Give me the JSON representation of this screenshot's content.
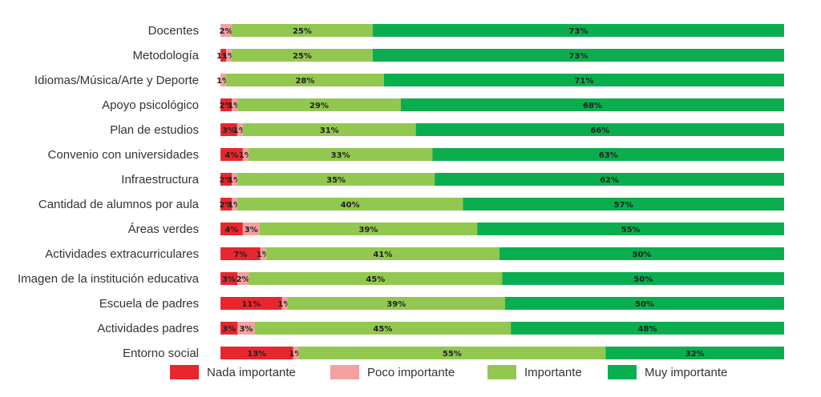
{
  "chart_data": {
    "type": "bar",
    "orientation": "horizontal",
    "stacked": true,
    "title": "",
    "xlabel": "",
    "ylabel": "",
    "categories": [
      "Docentes",
      "Metodología",
      "Idiomas/Música/Arte y Deporte",
      "Apoyo psicológico",
      "Plan de estudios",
      "Convenio con universidades",
      "Infraestructura",
      "Cantidad de alumnos por aula",
      "Áreas verdes",
      "Actividades extracurriculares",
      "Imagen de la institución educativa",
      "Escuela de padres",
      "Actividades padres",
      "Entorno social"
    ],
    "series": [
      {
        "name": "Nada importante",
        "color": "#e8262d",
        "values": [
          0,
          1,
          0,
          2,
          3,
          4,
          2,
          2,
          4,
          7,
          3,
          11,
          3,
          13
        ]
      },
      {
        "name": "Poco importante",
        "color": "#f4a0a0",
        "values": [
          2,
          1,
          1,
          1,
          1,
          1,
          1,
          1,
          3,
          1,
          2,
          1,
          3,
          1
        ]
      },
      {
        "name": "Importante",
        "color": "#92c84f",
        "values": [
          25,
          25,
          28,
          29,
          31,
          33,
          35,
          40,
          39,
          41,
          45,
          39,
          45,
          55
        ]
      },
      {
        "name": "Muy importante",
        "color": "#0aae4f",
        "values": [
          73,
          73,
          71,
          68,
          66,
          63,
          62,
          57,
          55,
          50,
          50,
          50,
          48,
          32
        ]
      }
    ],
    "legend_position": "bottom",
    "grid": false
  }
}
